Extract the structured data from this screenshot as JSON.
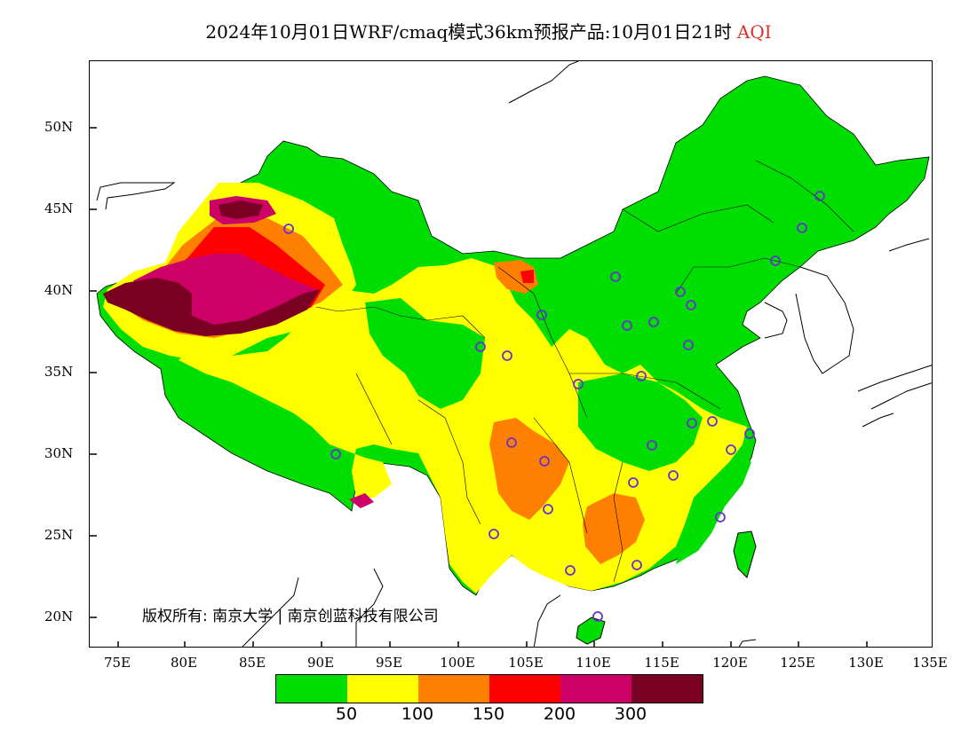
{
  "title": {
    "main": "2024年10月01日WRF/cmaq模式36km预报产品:10月01日21时",
    "variable": "AQI",
    "variable_color": "#e0302a"
  },
  "axes": {
    "lat_labels": [
      "50N",
      "45N",
      "40N",
      "35N",
      "30N",
      "25N",
      "20N"
    ],
    "lon_labels": [
      "75E",
      "80E",
      "85E",
      "90E",
      "95E",
      "100E",
      "105E",
      "110E",
      "115E",
      "120E",
      "125E",
      "130E",
      "135E"
    ]
  },
  "copyright": "版权所有: 南京大学 | 南京创蓝科技有限公司",
  "legend": {
    "colors": [
      "#00dd00",
      "#ffff00",
      "#ff7f00",
      "#ff0000",
      "#cc0066",
      "#7a0023"
    ],
    "labels": [
      "50",
      "100",
      "150",
      "200",
      "300"
    ]
  },
  "colors": {
    "good": "#00dd00",
    "moderate": "#ffff00",
    "unhealthy_sensitive": "#ff7f00",
    "unhealthy": "#ff0000",
    "very_unhealthy": "#cc0066",
    "hazardous": "#7a0023",
    "station_marker": "#6633cc"
  }
}
